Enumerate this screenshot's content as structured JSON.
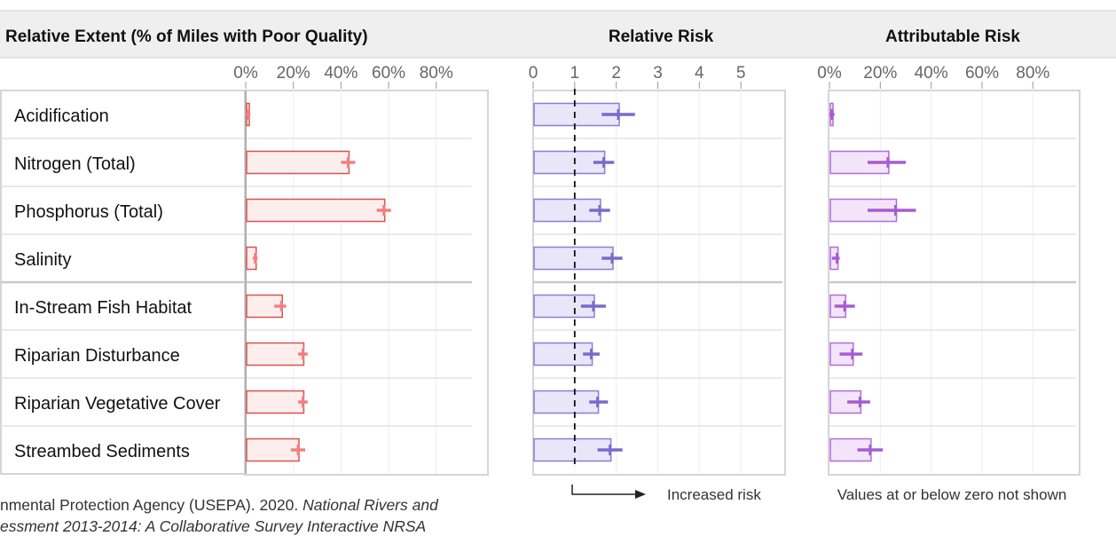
{
  "header": {
    "extent_title": "Relative Extent (% of Miles with Poor Quality)",
    "risk_title": "Relative Risk",
    "attrib_title": "Attributable Risk"
  },
  "rows": [
    "Acidification",
    "Nitrogen (Total)",
    "Phosphorus (Total)",
    "Salinity",
    "In-Stream Fish Habitat",
    "Riparian Disturbance",
    "Riparian Vegetative Cover",
    "Streambed Sediments"
  ],
  "captions": {
    "risk": "Increased risk",
    "attrib": "Values at or below zero not shown"
  },
  "source": {
    "line1_plain": "nmental Protection Agency (USEPA). 2020. ",
    "line1_italic": "National Rivers and",
    "line2": "essment 2013-2014: A Collaborative Survey Interactive NRSA"
  },
  "colors": {
    "extent_stroke": "#d9534f",
    "extent_fill": "#fdeeee",
    "extent_err": "#f08080",
    "risk_stroke": "#8a7fd4",
    "risk_fill": "#e9e6f9",
    "risk_err": "#7a6bc9",
    "attrib_stroke": "#b36bd9",
    "attrib_fill": "#f3e4fa",
    "attrib_err": "#a65cd0"
  },
  "chart_data": [
    {
      "type": "bar",
      "title": "Relative Extent (% of Miles with Poor Quality)",
      "categories": [
        "Acidification",
        "Nitrogen (Total)",
        "Phosphorus (Total)",
        "Salinity",
        "In-Stream Fish Habitat",
        "Riparian Disturbance",
        "Riparian Vegetative Cover",
        "Streambed Sediments"
      ],
      "values": [
        1,
        43,
        58,
        4,
        15,
        24,
        24,
        22
      ],
      "error_low": [
        0,
        40,
        55,
        3,
        12,
        22,
        22,
        19
      ],
      "error_high": [
        2,
        46,
        61,
        5,
        17,
        26,
        26,
        25
      ],
      "xlim": [
        0,
        95
      ],
      "ticks": [
        0,
        20,
        40,
        60,
        80
      ],
      "tick_labels": [
        "0%",
        "20%",
        "40%",
        "60%",
        "80%"
      ]
    },
    {
      "type": "bar",
      "title": "Relative Risk",
      "categories": [
        "Acidification",
        "Nitrogen (Total)",
        "Phosphorus (Total)",
        "Salinity",
        "In-Stream Fish Habitat",
        "Riparian Disturbance",
        "Riparian Vegetative Cover",
        "Streambed Sediments"
      ],
      "values": [
        2.05,
        1.7,
        1.6,
        1.9,
        1.45,
        1.4,
        1.55,
        1.85
      ],
      "error_low": [
        1.65,
        1.45,
        1.35,
        1.65,
        1.15,
        1.2,
        1.35,
        1.55
      ],
      "error_high": [
        2.45,
        1.95,
        1.85,
        2.15,
        1.75,
        1.6,
        1.8,
        2.15
      ],
      "reference_line": 1,
      "xlim": [
        0,
        6
      ],
      "ticks": [
        0,
        1,
        2,
        3,
        4,
        5
      ],
      "tick_labels": [
        "0",
        "1",
        "2",
        "3",
        "4",
        "5"
      ]
    },
    {
      "type": "bar",
      "title": "Attributable Risk",
      "categories": [
        "Acidification",
        "Nitrogen (Total)",
        "Phosphorus (Total)",
        "Salinity",
        "In-Stream Fish Habitat",
        "Riparian Disturbance",
        "Riparian Vegetative Cover",
        "Streambed Sediments"
      ],
      "values": [
        1,
        23,
        26,
        3,
        6,
        9,
        12,
        16
      ],
      "error_low": [
        0,
        15,
        15,
        1,
        2,
        4,
        7,
        11
      ],
      "error_high": [
        2,
        30,
        34,
        4,
        10,
        13,
        16,
        21
      ],
      "xlim": [
        0,
        97
      ],
      "ticks": [
        0,
        20,
        40,
        60,
        80
      ],
      "tick_labels": [
        "0%",
        "20%",
        "40%",
        "60%",
        "80%"
      ]
    }
  ]
}
